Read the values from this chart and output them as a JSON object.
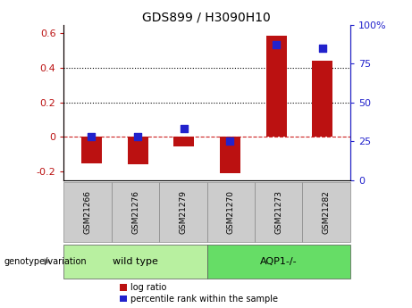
{
  "title": "GDS899 / H3090H10",
  "samples": [
    "GSM21266",
    "GSM21276",
    "GSM21279",
    "GSM21270",
    "GSM21273",
    "GSM21282"
  ],
  "log_ratios": [
    -0.155,
    -0.16,
    -0.055,
    -0.21,
    0.585,
    0.44
  ],
  "percentile_ranks": [
    28,
    28,
    33,
    25,
    87,
    85
  ],
  "groups": [
    {
      "label": "wild type",
      "indices": [
        0,
        1,
        2
      ],
      "color": "#b8f0a0"
    },
    {
      "label": "AQP1-/-",
      "indices": [
        3,
        4,
        5
      ],
      "color": "#66dd66"
    }
  ],
  "bar_color": "#bb1111",
  "dot_color": "#2222cc",
  "ylim_left": [
    -0.25,
    0.65
  ],
  "ylim_right": [
    0,
    100
  ],
  "yticks_left": [
    -0.2,
    0.0,
    0.2,
    0.4,
    0.6
  ],
  "yticks_right": [
    0,
    25,
    50,
    75,
    100
  ],
  "yticklabels_left": [
    "-0.2",
    "0",
    "0.2",
    "0.4",
    "0.6"
  ],
  "yticklabels_right": [
    "0",
    "25",
    "50",
    "75",
    "100%"
  ],
  "hlines": [
    0.2,
    0.4
  ],
  "zero_line": 0.0,
  "grid_color": "#000000",
  "zero_color": "#cc2222",
  "bg_label": "#cccccc",
  "genotype_label": "genotype/variation",
  "legend_items": [
    {
      "label": "log ratio",
      "color": "#bb1111"
    },
    {
      "label": "percentile rank within the sample",
      "color": "#2222cc"
    }
  ],
  "bar_width": 0.45,
  "dot_size": 40,
  "figsize": [
    4.61,
    3.45
  ],
  "dpi": 100
}
